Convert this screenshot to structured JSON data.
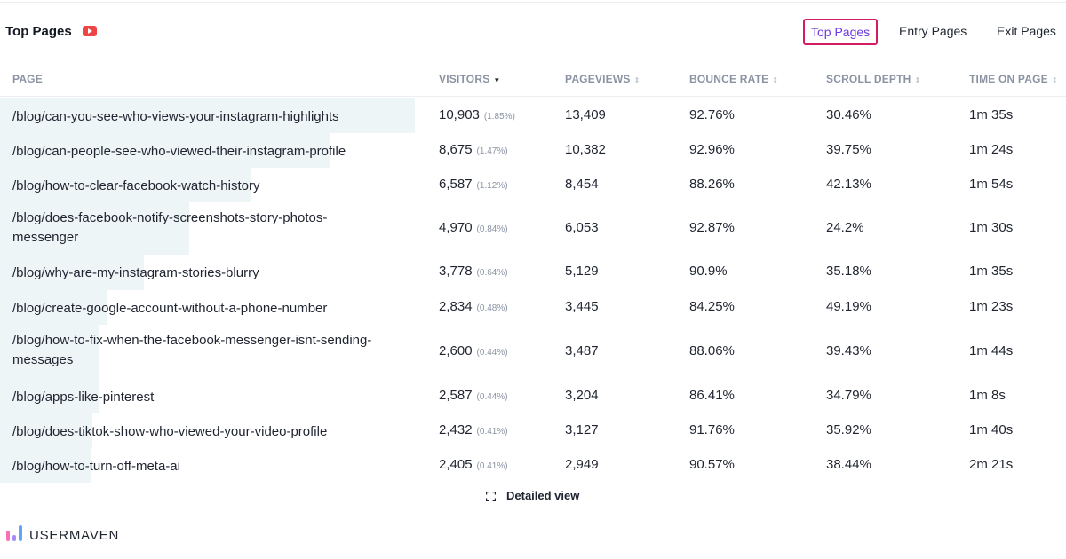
{
  "header": {
    "title": "Top Pages",
    "tabs": [
      {
        "label": "Top Pages",
        "active": true
      },
      {
        "label": "Entry Pages",
        "active": false
      },
      {
        "label": "Exit Pages",
        "active": false
      }
    ]
  },
  "columns": {
    "page": "PAGE",
    "visitors": "VISITORS",
    "pageviews": "PAGEVIEWS",
    "bounce_rate": "BOUNCE RATE",
    "scroll_depth": "SCROLL DEPTH",
    "time_on_page": "TIME ON PAGE"
  },
  "rows": [
    {
      "page": "/blog/can-you-see-who-views-your-instagram-highlights",
      "visitors": "10,903",
      "visitor_pct": "(1.85%)",
      "visitor_share": 1.0,
      "pageviews": "13,409",
      "bounce_rate": "92.76%",
      "scroll_depth": "30.46%",
      "time_on_page": "1m 35s"
    },
    {
      "page": "/blog/can-people-see-who-viewed-their-instagram-profile",
      "visitors": "8,675",
      "visitor_pct": "(1.47%)",
      "visitor_share": 0.795,
      "pageviews": "10,382",
      "bounce_rate": "92.96%",
      "scroll_depth": "39.75%",
      "time_on_page": "1m 24s"
    },
    {
      "page": "/blog/how-to-clear-facebook-watch-history",
      "visitors": "6,587",
      "visitor_pct": "(1.12%)",
      "visitor_share": 0.604,
      "pageviews": "8,454",
      "bounce_rate": "88.26%",
      "scroll_depth": "42.13%",
      "time_on_page": "1m 54s"
    },
    {
      "page": "/blog/does-facebook-notify-screenshots-story-photos-messenger",
      "visitors": "4,970",
      "visitor_pct": "(0.84%)",
      "visitor_share": 0.456,
      "pageviews": "6,053",
      "bounce_rate": "92.87%",
      "scroll_depth": "24.2%",
      "time_on_page": "1m 30s"
    },
    {
      "page": "/blog/why-are-my-instagram-stories-blurry",
      "visitors": "3,778",
      "visitor_pct": "(0.64%)",
      "visitor_share": 0.347,
      "pageviews": "5,129",
      "bounce_rate": "90.9%",
      "scroll_depth": "35.18%",
      "time_on_page": "1m 35s"
    },
    {
      "page": "/blog/create-google-account-without-a-phone-number",
      "visitors": "2,834",
      "visitor_pct": "(0.48%)",
      "visitor_share": 0.26,
      "pageviews": "3,445",
      "bounce_rate": "84.25%",
      "scroll_depth": "49.19%",
      "time_on_page": "1m 23s"
    },
    {
      "page": "/blog/how-to-fix-when-the-facebook-messenger-isnt-sending-messages",
      "visitors": "2,600",
      "visitor_pct": "(0.44%)",
      "visitor_share": 0.238,
      "pageviews": "3,487",
      "bounce_rate": "88.06%",
      "scroll_depth": "39.43%",
      "time_on_page": "1m 44s"
    },
    {
      "page": "/blog/apps-like-pinterest",
      "visitors": "2,587",
      "visitor_pct": "(0.44%)",
      "visitor_share": 0.237,
      "pageviews": "3,204",
      "bounce_rate": "86.41%",
      "scroll_depth": "34.79%",
      "time_on_page": "1m 8s"
    },
    {
      "page": "/blog/does-tiktok-show-who-viewed-your-video-profile",
      "visitors": "2,432",
      "visitor_pct": "(0.41%)",
      "visitor_share": 0.223,
      "pageviews": "3,127",
      "bounce_rate": "91.76%",
      "scroll_depth": "35.92%",
      "time_on_page": "1m 40s"
    },
    {
      "page": "/blog/how-to-turn-off-meta-ai",
      "visitors": "2,405",
      "visitor_pct": "(0.41%)",
      "visitor_share": 0.221,
      "pageviews": "2,949",
      "bounce_rate": "90.57%",
      "scroll_depth": "38.44%",
      "time_on_page": "2m 21s"
    }
  ],
  "footer": {
    "detailed_view": "Detailed view",
    "brand": "USERMAVEN"
  },
  "colors": {
    "active_tab_border": "#d11d63",
    "active_tab_text": "#6d38e0",
    "bar_fill": "#eef5f7",
    "youtube_icon": "#ef4444"
  },
  "icons": {
    "title_icon": "youtube-icon",
    "detail_icon": "expand-icon",
    "sort_icon": "sort-icon"
  }
}
